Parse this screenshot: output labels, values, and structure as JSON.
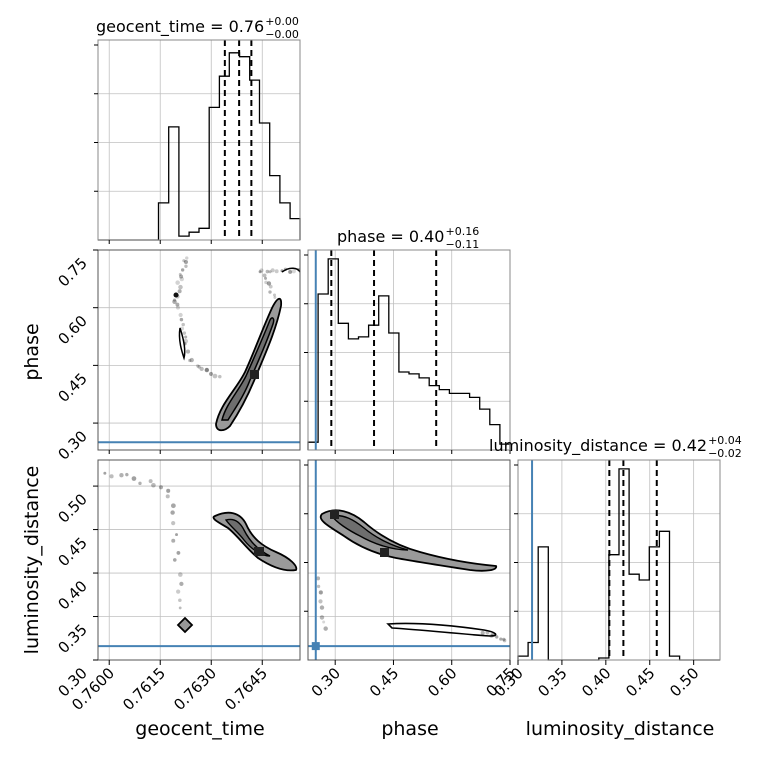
{
  "chart_data": {
    "type": "corner",
    "parameters": [
      "geocent_time",
      "phase",
      "luminosity_distance"
    ],
    "truths": {
      "phase": 0.25,
      "luminosity_distance": 0.316
    },
    "truth_color": "#4682b4",
    "colors": {
      "hist": "#000000",
      "grid": "#c0c0c0",
      "contour_fill": "#9a9a9a"
    },
    "grid": true,
    "titles": [
      {
        "param": "geocent_time",
        "text": "geocent_time = 0.76",
        "sup": "+0.00",
        "sub": "−0.00"
      },
      {
        "param": "phase",
        "text": "phase = 0.40",
        "sup": "+0.16",
        "sub": "−0.11"
      },
      {
        "param": "luminosity_distance",
        "text": "luminosity_distance = 0.42",
        "sup": "+0.04",
        "sub": "−0.02"
      }
    ],
    "axis_labels": {
      "geocent_time": "geocent_time",
      "phase": "phase",
      "luminosity_distance": "luminosity_distance"
    },
    "ticks": {
      "geocent_time": {
        "range": [
          0.75967,
          0.76561
        ],
        "values": [
          0.76,
          0.7615,
          0.763,
          0.7645
        ],
        "labels": [
          "0.7600",
          "0.7615",
          "0.7630",
          "0.7645"
        ]
      },
      "phase": {
        "range": [
          0.23,
          0.75
        ],
        "values": [
          0.3,
          0.45,
          0.6,
          0.75
        ],
        "labels": [
          "0.30",
          "0.45",
          "0.60",
          "0.75"
        ]
      },
      "luminosity_distance": {
        "range": [
          0.3,
          0.53
        ],
        "values": [
          0.3,
          0.35,
          0.4,
          0.45,
          0.5
        ],
        "labels": [
          "0.30",
          "0.35",
          "0.40",
          "0.45",
          "0.50"
        ]
      }
    },
    "histograms": {
      "geocent_time": {
        "edges": [
          0.75967,
          0.75997,
          0.76026,
          0.76056,
          0.76086,
          0.76116,
          0.76145,
          0.76175,
          0.76205,
          0.76235,
          0.76264,
          0.76294,
          0.76324,
          0.76353,
          0.76383,
          0.76413,
          0.76442,
          0.76472,
          0.76502,
          0.76532,
          0.76561
        ],
        "counts": [
          0,
          0,
          0,
          0,
          0,
          0,
          0.19,
          0.58,
          0.02,
          0.04,
          0.06,
          0.68,
          0.84,
          0.96,
          0.94,
          0.82,
          0.6,
          0.33,
          0.19,
          0.11
        ],
        "quantiles": [
          0.7634,
          0.76382,
          0.76418
        ]
      },
      "phase": {
        "edges": [
          0.23,
          0.256,
          0.282,
          0.308,
          0.334,
          0.36,
          0.386,
          0.412,
          0.438,
          0.464,
          0.49,
          0.516,
          0.542,
          0.568,
          0.594,
          0.62,
          0.646,
          0.672,
          0.698,
          0.724,
          0.75
        ],
        "counts": [
          0.04,
          0.8,
          0.98,
          0.65,
          0.57,
          0.58,
          0.64,
          0.79,
          0.6,
          0.4,
          0.39,
          0.37,
          0.33,
          0.31,
          0.29,
          0.29,
          0.27,
          0.21,
          0.13,
          0.03
        ],
        "quantiles": [
          0.29,
          0.4,
          0.56
        ]
      },
      "luminosity_distance": {
        "edges": [
          0.3,
          0.3115,
          0.323,
          0.3345,
          0.346,
          0.3575,
          0.369,
          0.3805,
          0.392,
          0.4035,
          0.415,
          0.4265,
          0.438,
          0.4495,
          0.461,
          0.4725,
          0.484,
          0.4955,
          0.507,
          0.5185,
          0.53
        ],
        "counts": [
          0.02,
          0.09,
          0.58,
          0,
          0,
          0,
          0,
          0,
          0.01,
          0.54,
          0.98,
          0.44,
          0.41,
          0.58,
          0.66,
          0.02,
          0,
          0,
          0,
          0
        ],
        "quantiles": [
          0.404,
          0.42,
          0.458
        ]
      }
    }
  }
}
